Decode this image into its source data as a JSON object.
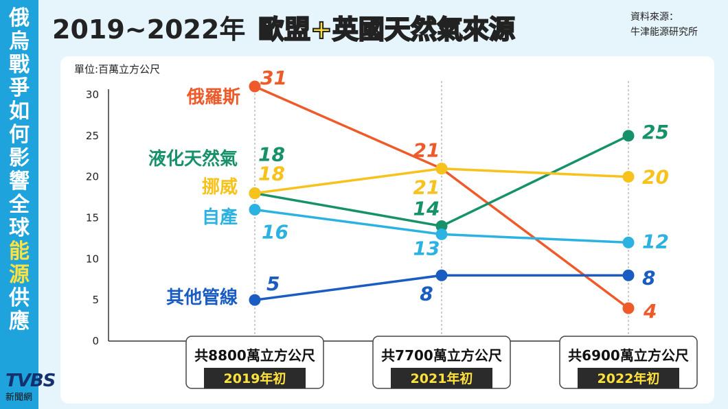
{
  "side_title": {
    "part1": "俄烏戰爭如何影響全球",
    "highlight": "能源",
    "part2": "供應"
  },
  "header": {
    "title_main": "2019~2022年",
    "title_highlight": "歐盟+英國天然氣來源"
  },
  "source": {
    "label": "資料來源：",
    "name": "牛津能源研究所"
  },
  "logo": {
    "brand": "TVBS",
    "sub": "新聞網"
  },
  "chart_data": {
    "type": "line",
    "unit_label": "單位:百萬立方公尺",
    "categories": [
      "2019年初",
      "2021年初",
      "2022年初"
    ],
    "totals": [
      "共8800萬立方公尺",
      "共7700萬立方公尺",
      "共6900萬立方公尺"
    ],
    "ylim": [
      0,
      30
    ],
    "yticks": [
      "0",
      "5",
      "10",
      "15",
      "20",
      "25",
      "30"
    ],
    "series": [
      {
        "name": "俄羅斯",
        "values": [
          31,
          21,
          4
        ],
        "color": "#ef5a2a"
      },
      {
        "name": "液化天然氣",
        "values": [
          18,
          14,
          25
        ],
        "color": "#17916a"
      },
      {
        "name": "挪威",
        "values": [
          18,
          21,
          20
        ],
        "color": "#f7c21b"
      },
      {
        "name": "自產",
        "values": [
          16,
          13,
          12
        ],
        "color": "#2bb2e0"
      },
      {
        "name": "其他管線",
        "values": [
          5,
          8,
          8
        ],
        "color": "#1a5cc2"
      }
    ]
  }
}
